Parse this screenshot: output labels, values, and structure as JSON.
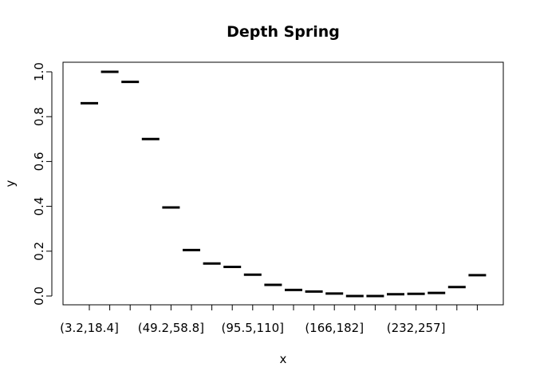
{
  "chart_data": {
    "type": "bar",
    "title": "Depth Spring",
    "xlabel": "x",
    "ylabel": "y",
    "ylim": [
      0,
      1
    ],
    "yticks": [
      0.0,
      0.2,
      0.4,
      0.6,
      0.8,
      1.0
    ],
    "ytick_labels": [
      "0.0",
      "0.2",
      "0.4",
      "0.6",
      "0.8",
      "1.0"
    ],
    "categories": [
      "(3.2,18.4]",
      "",
      "",
      "",
      "(49.2,58.8]",
      "",
      "",
      "",
      "(95.5,110]",
      "",
      "",
      "",
      "(166,182]",
      "",
      "",
      "",
      "(232,257]",
      "",
      "",
      ""
    ],
    "values": [
      0.86,
      1.0,
      0.955,
      0.7,
      0.395,
      0.205,
      0.145,
      0.13,
      0.095,
      0.05,
      0.027,
      0.02,
      0.011,
      0.0,
      0.0,
      0.008,
      0.01,
      0.014,
      0.04,
      0.093
    ],
    "marker": "horizontal-segment",
    "grid": false,
    "legend": "none"
  }
}
